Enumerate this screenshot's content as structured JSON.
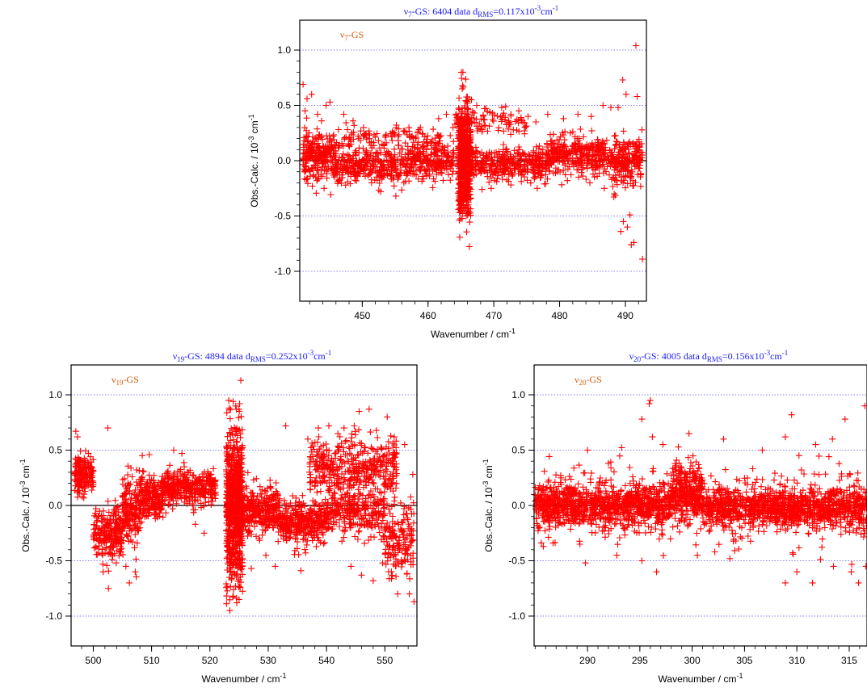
{
  "chart_data": [
    {
      "type": "scatter",
      "title": "ν7-GS: 6404 data dRMS=0.117x10-3cm-1",
      "title_parts": {
        "nu": "ν",
        "nu_sub": "7",
        "rest": "-GS: 6404 data d",
        "d_sub": "RMS",
        "value": "=0.117x10",
        "exp": "-3",
        "unit": "cm",
        "unit_exp": "-1"
      },
      "legend": {
        "nu": "ν",
        "sub": "7",
        "rest": "-GS"
      },
      "xlabel": {
        "text": "Wavenumber / cm",
        "exp": "-1"
      },
      "ylabel": {
        "text": "Obs.-Calc.  / 10",
        "exp": "-3",
        "unit": " cm",
        "unit_exp": "-1"
      },
      "xlim": [
        440.5,
        493.2
      ],
      "ylim": [
        -1.27,
        1.27
      ],
      "xticks": [
        450,
        460,
        470,
        480,
        490
      ],
      "xticklabels": [
        "450",
        "460",
        "470",
        "480",
        "490"
      ],
      "yticks": [
        1.0,
        0.5,
        0.0,
        -0.5,
        -1.0
      ],
      "yticklabels": [
        "1.0",
        "0.5",
        "0.0",
        "-0.5",
        "-1.0"
      ],
      "gridlines": [
        1.0,
        0.5,
        -0.5,
        -1.0
      ],
      "n_points": 6404,
      "marker": "+",
      "marker_color": "#ff0000",
      "points": [
        [
          441.0,
          0.69
        ],
        [
          441.3,
          0.45
        ],
        [
          441.6,
          0.56
        ],
        [
          442.3,
          0.6
        ],
        [
          443.2,
          0.42
        ],
        [
          443.8,
          0.36
        ],
        [
          444.5,
          0.5
        ],
        [
          445.1,
          0.53
        ],
        [
          443.1,
          -0.18
        ],
        [
          444.2,
          -0.25
        ],
        [
          447.2,
          0.42
        ],
        [
          448.6,
          0.36
        ],
        [
          450.2,
          0.3
        ],
        [
          452.8,
          -0.28
        ],
        [
          455.1,
          -0.32
        ],
        [
          456.4,
          0.27
        ],
        [
          457.1,
          0.3
        ],
        [
          459.2,
          0.24
        ],
        [
          461.6,
          0.38
        ],
        [
          462.8,
          0.42
        ],
        [
          463.8,
          0.3
        ],
        [
          465.3,
          0.8
        ],
        [
          465.2,
          0.65
        ],
        [
          465.8,
          -0.5
        ],
        [
          466.1,
          -0.47
        ],
        [
          466.6,
          0.55
        ],
        [
          467.4,
          0.5
        ],
        [
          468.6,
          0.47
        ],
        [
          469.8,
          0.43
        ],
        [
          471.2,
          0.48
        ],
        [
          472.6,
          0.42
        ],
        [
          473.8,
          0.45
        ],
        [
          475.2,
          0.4
        ],
        [
          476.4,
          0.35
        ],
        [
          478.2,
          0.42
        ],
        [
          480.6,
          0.38
        ],
        [
          482.8,
          0.42
        ],
        [
          484.8,
          0.4
        ],
        [
          486.6,
          0.5
        ],
        [
          487.8,
          0.48
        ],
        [
          488.9,
          0.48
        ],
        [
          489.6,
          0.73
        ],
        [
          490.1,
          0.6
        ],
        [
          491.6,
          1.04
        ],
        [
          491.8,
          0.58
        ],
        [
          489.3,
          -0.64
        ],
        [
          489.7,
          -0.55
        ],
        [
          490.3,
          -0.6
        ],
        [
          490.7,
          -0.49
        ],
        [
          490.9,
          -0.76
        ],
        [
          491.3,
          -0.74
        ],
        [
          492.6,
          -0.89
        ],
        [
          488.3,
          -0.3
        ],
        [
          486.8,
          -0.25
        ],
        [
          484.6,
          -0.2
        ],
        [
          481.2,
          -0.18
        ],
        [
          476.6,
          -0.25
        ],
        [
          472.6,
          -0.22
        ],
        [
          468.2,
          -0.26
        ],
        [
          469.6,
          -0.25
        ]
      ],
      "bands": [
        {
          "x": [
            441.0,
            446.0
          ],
          "center": 0.05,
          "spread": 0.17,
          "count": 260
        },
        {
          "x": [
            446.0,
            457.0
          ],
          "center": -0.05,
          "spread": 0.13,
          "count": 320
        },
        {
          "x": [
            457.0,
            464.0
          ],
          "center": 0.0,
          "spread": 0.14,
          "count": 240
        },
        {
          "x": [
            464.6,
            466.5
          ],
          "center": 0.0,
          "spread": 0.42,
          "count": 620
        },
        {
          "x": [
            466.5,
            478.0
          ],
          "center": -0.03,
          "spread": 0.12,
          "count": 360
        },
        {
          "x": [
            478.0,
            488.0
          ],
          "center": 0.05,
          "spread": 0.15,
          "count": 360
        },
        {
          "x": [
            488.0,
            492.6
          ],
          "center": 0.0,
          "spread": 0.18,
          "count": 220
        },
        {
          "x": [
            464.0,
            475.0
          ],
          "center": 0.35,
          "spread": 0.08,
          "count": 90
        },
        {
          "x": [
            446.0,
            462.0
          ],
          "center": 0.2,
          "spread": 0.1,
          "count": 110
        }
      ]
    },
    {
      "type": "scatter",
      "title": "ν19-GS: 4894 data dRMS=0.252x10-3cm-1",
      "title_parts": {
        "nu": "ν",
        "nu_sub": "19",
        "rest": "-GS: 4894 data d",
        "d_sub": "RMS",
        "value": "=0.252x10",
        "exp": "-3",
        "unit": "cm",
        "unit_exp": "-1"
      },
      "legend": {
        "nu": "ν",
        "sub": "19",
        "rest": "-GS"
      },
      "xlabel": {
        "text": "Wavenumber / cm",
        "exp": "-1"
      },
      "ylabel": {
        "text": "Obs.-Calc.  / 10",
        "exp": "-3",
        "unit": " cm",
        "unit_exp": "-1"
      },
      "xlim": [
        496.2,
        555.5
      ],
      "ylim": [
        -1.27,
        1.27
      ],
      "xticks": [
        500,
        510,
        520,
        530,
        540,
        550
      ],
      "xticklabels": [
        "500",
        "510",
        "520",
        "530",
        "540",
        "550"
      ],
      "yticks": [
        1.0,
        0.5,
        0.0,
        -0.5,
        -1.0
      ],
      "yticklabels": [
        "1.0",
        "0.5",
        "0.0",
        "-0.5",
        "-1.0"
      ],
      "gridlines": [
        1.0,
        0.5,
        -0.5,
        -1.0
      ],
      "n_points": 4894,
      "marker": "+",
      "marker_color": "#ff0000",
      "points": [
        [
          497.0,
          0.67
        ],
        [
          497.3,
          0.62
        ],
        [
          502.5,
          0.7
        ],
        [
          502.6,
          -0.75
        ],
        [
          501.7,
          -0.6
        ],
        [
          506.2,
          -0.7
        ],
        [
          507.2,
          -0.6
        ],
        [
          505.6,
          -0.55
        ],
        [
          508.4,
          0.45
        ],
        [
          509.6,
          0.46
        ],
        [
          513.8,
          0.5
        ],
        [
          515.2,
          0.47
        ],
        [
          517.5,
          -0.17
        ],
        [
          519.0,
          -0.25
        ],
        [
          525.3,
          1.13
        ],
        [
          525.1,
          0.92
        ],
        [
          523.3,
          0.88
        ],
        [
          524.0,
          -0.82
        ],
        [
          524.6,
          -0.88
        ],
        [
          525.0,
          -0.85
        ],
        [
          527.1,
          -0.57
        ],
        [
          529.6,
          -0.45
        ],
        [
          531.2,
          -0.55
        ],
        [
          533.0,
          0.72
        ],
        [
          535.6,
          -0.59
        ],
        [
          536.8,
          0.6
        ],
        [
          538.6,
          0.7
        ],
        [
          540.4,
          0.72
        ],
        [
          543.0,
          0.7
        ],
        [
          545.6,
          0.85
        ],
        [
          547.3,
          0.87
        ],
        [
          548.0,
          -0.68
        ],
        [
          550.4,
          0.8
        ],
        [
          551.6,
          0.62
        ],
        [
          553.4,
          0.55
        ],
        [
          554.8,
          0.28
        ],
        [
          553.8,
          -0.62
        ],
        [
          554.2,
          -0.8
        ],
        [
          555.0,
          -0.87
        ],
        [
          552.2,
          -0.8
        ],
        [
          544.2,
          -0.55
        ],
        [
          546.0,
          -0.63
        ],
        [
          549.6,
          -0.52
        ]
      ],
      "bands": [
        {
          "x": [
            496.8,
            500.0
          ],
          "center": 0.3,
          "spread": 0.14,
          "count": 180
        },
        {
          "x": [
            500.0,
            505.0
          ],
          "center": -0.25,
          "spread": 0.2,
          "count": 230
        },
        {
          "x": [
            505.0,
            508.0
          ],
          "center": -0.05,
          "spread": 0.25,
          "count": 170
        },
        {
          "x": [
            508.0,
            512.0
          ],
          "center": 0.08,
          "spread": 0.16,
          "count": 220
        },
        {
          "x": [
            512.0,
            521.0
          ],
          "center": 0.16,
          "spread": 0.13,
          "count": 360
        },
        {
          "x": [
            522.8,
            525.6
          ],
          "center": 0.0,
          "spread": 0.55,
          "count": 820
        },
        {
          "x": [
            525.6,
            532.0
          ],
          "center": -0.05,
          "spread": 0.17,
          "count": 300
        },
        {
          "x": [
            532.0,
            540.0
          ],
          "center": -0.15,
          "spread": 0.16,
          "count": 340
        },
        {
          "x": [
            537.0,
            552.0
          ],
          "center": 0.35,
          "spread": 0.22,
          "count": 420
        },
        {
          "x": [
            540.0,
            550.0
          ],
          "center": -0.05,
          "spread": 0.18,
          "count": 280
        },
        {
          "x": [
            550.0,
            555.0
          ],
          "center": -0.3,
          "spread": 0.3,
          "count": 160
        }
      ]
    },
    {
      "type": "scatter",
      "title": "ν20-GS: 4005 data dRMS=0.156x10-3cm-1",
      "title_parts": {
        "nu": "ν",
        "nu_sub": "20",
        "rest": "-GS: 4005 data d",
        "d_sub": "RMS",
        "value": "=0.156x10",
        "exp": "-3",
        "unit": "cm",
        "unit_exp": "-1"
      },
      "legend": {
        "nu": "ν",
        "sub": "20",
        "rest": "-GS"
      },
      "xlabel": {
        "text": "Wavenumber / cm",
        "exp": "-1"
      },
      "ylabel": {
        "text": "Obs.-Calc.  / 10",
        "exp": "-3",
        "unit": " cm",
        "unit_exp": "-1"
      },
      "xlim": [
        284.9,
        316.7
      ],
      "ylim": [
        -1.27,
        1.27
      ],
      "xticks": [
        290,
        295,
        300,
        305,
        310,
        315
      ],
      "xticklabels": [
        "290",
        "295",
        "300",
        "305",
        "310",
        "315"
      ],
      "yticks": [
        1.0,
        0.5,
        0.0,
        -0.5,
        -1.0
      ],
      "yticklabels": [
        "1.0",
        "0.5",
        "0.0",
        "-0.5",
        "-1.0"
      ],
      "gridlines": [
        1.0,
        0.5,
        -0.5,
        -1.0
      ],
      "n_points": 4005,
      "marker": "+",
      "marker_color": "#ff0000",
      "points": [
        [
          295.9,
          0.92
        ],
        [
          296.0,
          0.95
        ],
        [
          295.2,
          0.78
        ],
        [
          296.2,
          0.62
        ],
        [
          299.7,
          0.65
        ],
        [
          303.0,
          0.6
        ],
        [
          308.9,
          0.62
        ],
        [
          309.5,
          0.82
        ],
        [
          310.2,
          0.45
        ],
        [
          311.8,
          0.55
        ],
        [
          313.4,
          0.6
        ],
        [
          314.6,
          0.78
        ],
        [
          316.5,
          0.9
        ],
        [
          290.0,
          0.5
        ],
        [
          292.0,
          0.38
        ],
        [
          289.8,
          -0.52
        ],
        [
          292.8,
          -0.45
        ],
        [
          296.6,
          -0.6
        ],
        [
          295.2,
          -0.5
        ],
        [
          300.5,
          -0.45
        ],
        [
          303.6,
          -0.48
        ],
        [
          308.9,
          -0.7
        ],
        [
          310.0,
          -0.6
        ],
        [
          311.5,
          -0.7
        ],
        [
          313.5,
          -0.55
        ],
        [
          315.2,
          -0.6
        ],
        [
          316.6,
          -0.55
        ],
        [
          315.9,
          -0.7
        ],
        [
          297.2,
          0.55
        ],
        [
          306.7,
          0.5
        ]
      ],
      "bands": [
        {
          "x": [
            285.0,
            298.0
          ],
          "center": 0.0,
          "spread": 0.15,
          "count": 900
        },
        {
          "x": [
            298.0,
            301.0
          ],
          "center": 0.12,
          "spread": 0.2,
          "count": 300
        },
        {
          "x": [
            301.0,
            316.7
          ],
          "center": -0.02,
          "spread": 0.15,
          "count": 1000
        },
        {
          "x": [
            285.0,
            316.7
          ],
          "center": 0.0,
          "spread": 0.3,
          "count": 450
        }
      ]
    }
  ]
}
